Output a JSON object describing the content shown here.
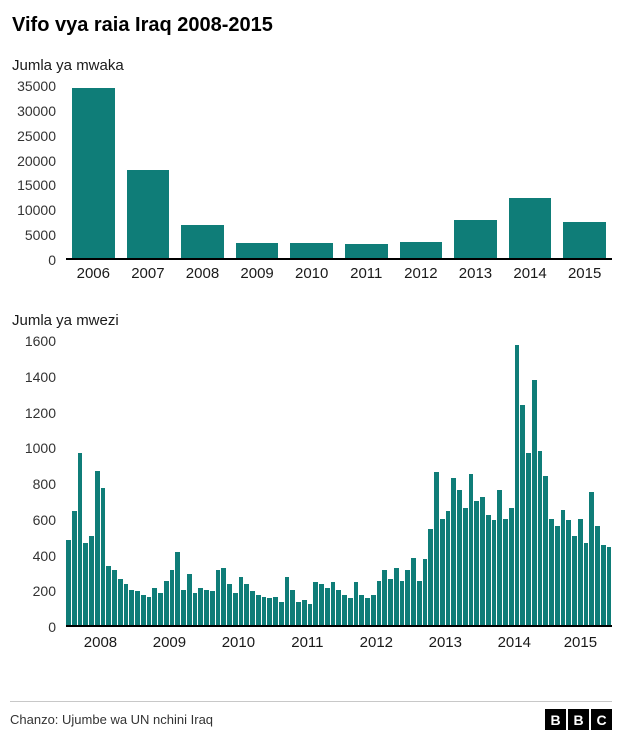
{
  "title": "Vifo vya raia Iraq 2008-2015",
  "source": "Chanzo: Ujumbe wa UN nchini Iraq",
  "logo": [
    "B",
    "B",
    "C"
  ],
  "colors": {
    "bar": "#0f7d78",
    "axis": "#000000"
  },
  "chart_data": [
    {
      "type": "bar",
      "title": "Jumla ya mwaka",
      "categories": [
        "2006",
        "2007",
        "2008",
        "2009",
        "2010",
        "2011",
        "2012",
        "2013",
        "2014",
        "2015"
      ],
      "values": [
        34500,
        18000,
        6800,
        3000,
        3000,
        2800,
        3200,
        7800,
        12300,
        7400
      ],
      "ylim": [
        0,
        35000
      ],
      "yticks": [
        0,
        5000,
        10000,
        15000,
        20000,
        25000,
        30000,
        35000
      ],
      "grid": false,
      "legend": "none"
    },
    {
      "type": "bar",
      "title": "Jumla ya mwezi",
      "ylim": [
        0,
        1600
      ],
      "yticks": [
        0,
        200,
        400,
        600,
        800,
        1000,
        1200,
        1400,
        1600
      ],
      "grid": false,
      "legend": "none",
      "groups": [
        {
          "year": "2008",
          "values": [
            480,
            640,
            970,
            460,
            500,
            870,
            770,
            330,
            310,
            260,
            230,
            200
          ]
        },
        {
          "year": "2009",
          "values": [
            190,
            170,
            160,
            210,
            180,
            250,
            310,
            410,
            200,
            290,
            180,
            210
          ]
        },
        {
          "year": "2010",
          "values": [
            200,
            190,
            310,
            320,
            230,
            180,
            270,
            230,
            190,
            170,
            160,
            150
          ]
        },
        {
          "year": "2011",
          "values": [
            160,
            130,
            270,
            200,
            130,
            140,
            120,
            240,
            230,
            210,
            240,
            200
          ]
        },
        {
          "year": "2012",
          "values": [
            170,
            150,
            240,
            170,
            150,
            170,
            250,
            310,
            260,
            320,
            250,
            310
          ]
        },
        {
          "year": "2013",
          "values": [
            380,
            250,
            370,
            540,
            860,
            600,
            640,
            830,
            760,
            660,
            850,
            700
          ]
        },
        {
          "year": "2014",
          "values": [
            720,
            620,
            590,
            760,
            600,
            660,
            1580,
            1240,
            970,
            1380,
            980,
            840
          ]
        },
        {
          "year": "2015",
          "values": [
            600,
            560,
            650,
            590,
            500,
            600,
            460,
            750,
            560,
            450,
            440
          ]
        }
      ]
    }
  ]
}
